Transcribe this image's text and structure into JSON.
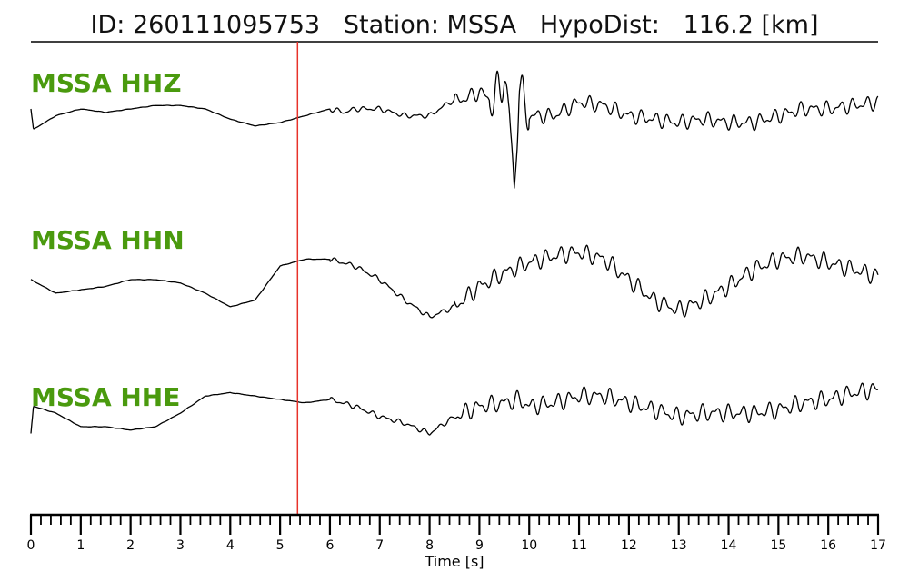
{
  "title": {
    "id_label": "ID:",
    "id_value": "260111095753",
    "station_label": "Station:",
    "station_value": "MSSA",
    "dist_label": "HypoDist:",
    "dist_value": "116.2",
    "dist_unit": "[km]"
  },
  "colors": {
    "label_green": "#4a9a0e",
    "pick_line": "#e8322a",
    "trace": "#000000"
  },
  "chart_data": {
    "type": "line",
    "title": "ID: 260111095753   Station: MSSA   HypoDist:   116.2 [km]",
    "xlabel": "Time [s]",
    "xlim": [
      0,
      17
    ],
    "x_ticks": [
      0,
      1,
      2,
      3,
      4,
      5,
      6,
      7,
      8,
      9,
      10,
      11,
      12,
      13,
      14,
      15,
      16,
      17
    ],
    "x_tick_labels": [
      "0",
      "1",
      "2",
      "3",
      "4",
      "5",
      "6",
      "7",
      "8",
      "9",
      "10",
      "11",
      "12",
      "13",
      "14",
      "15",
      "16",
      "17"
    ],
    "minor_tick_step": 0.2,
    "pick_time": 5.35,
    "channels": [
      {
        "name": "MSSA HHZ"
      },
      {
        "name": "MSSA HHN"
      },
      {
        "name": "MSSA HHE"
      }
    ],
    "series": [
      {
        "name": "MSSA HHZ",
        "x": [
          0,
          0.05,
          0.5,
          1.0,
          1.5,
          2.0,
          2.5,
          3.0,
          3.5,
          4.0,
          4.5,
          5.0,
          5.5,
          6.0,
          6.3,
          6.5,
          7.0,
          7.5,
          8.0,
          8.4,
          8.7,
          9.0,
          9.3,
          9.5,
          9.6,
          9.7,
          9.8,
          9.9,
          10.0,
          10.5,
          11.0,
          11.5,
          12.0,
          12.5,
          13.0,
          13.5,
          14.0,
          14.5,
          15.0,
          15.5,
          16.0,
          16.5,
          17.0
        ],
        "y": [
          0.2,
          -0.1,
          0.1,
          0.2,
          0.15,
          0.2,
          0.25,
          0.25,
          0.2,
          0.05,
          -0.05,
          0,
          0.1,
          0.2,
          0.15,
          0.2,
          0.2,
          0.1,
          0.1,
          0.3,
          0.35,
          0.45,
          0.3,
          0.7,
          0.1,
          -1.0,
          0.6,
          0.2,
          0.1,
          0.1,
          0.3,
          0.25,
          0.1,
          0.05,
          0,
          0.05,
          0,
          0,
          0.1,
          0.2,
          0.2,
          0.25,
          0.3
        ]
      },
      {
        "name": "MSSA HHN",
        "x": [
          0,
          0.5,
          1.0,
          1.5,
          2.0,
          2.5,
          3.0,
          3.5,
          4.0,
          4.5,
          5.0,
          5.5,
          6.0,
          6.5,
          7.0,
          7.5,
          8.0,
          8.5,
          9.0,
          9.5,
          10.0,
          10.5,
          11.0,
          11.5,
          12.0,
          12.5,
          13.0,
          13.5,
          14.0,
          14.5,
          15.0,
          15.5,
          16.0,
          16.5,
          17.0
        ],
        "y": [
          0,
          -0.2,
          -0.15,
          -0.1,
          0,
          0,
          -0.05,
          -0.2,
          -0.4,
          -0.3,
          0.2,
          0.3,
          0.3,
          0.2,
          0,
          -0.3,
          -0.55,
          -0.4,
          -0.1,
          0.1,
          0.25,
          0.35,
          0.4,
          0.3,
          0,
          -0.3,
          -0.45,
          -0.3,
          -0.1,
          0.15,
          0.3,
          0.35,
          0.25,
          0.15,
          0.05
        ]
      },
      {
        "name": "MSSA HHE",
        "x": [
          0,
          0.05,
          0.5,
          1.0,
          1.5,
          2.0,
          2.5,
          3.0,
          3.5,
          4.0,
          4.5,
          5.0,
          5.5,
          6.0,
          6.5,
          7.0,
          7.5,
          8.0,
          8.5,
          9.0,
          9.5,
          9.8,
          10.0,
          10.5,
          11.0,
          11.5,
          12.0,
          12.5,
          13.0,
          13.5,
          14.0,
          14.5,
          15.0,
          15.5,
          16.0,
          16.5,
          17.0
        ],
        "y": [
          -0.3,
          0.1,
          0,
          -0.2,
          -0.2,
          -0.25,
          -0.2,
          0,
          0.25,
          0.3,
          0.25,
          0.2,
          0.15,
          0.2,
          0.1,
          -0.05,
          -0.15,
          -0.3,
          -0.05,
          0.1,
          0.15,
          0.2,
          0.1,
          0.15,
          0.25,
          0.25,
          0.15,
          0.05,
          -0.05,
          0,
          0,
          0,
          0.05,
          0.15,
          0.2,
          0.3,
          0.35
        ]
      }
    ]
  }
}
